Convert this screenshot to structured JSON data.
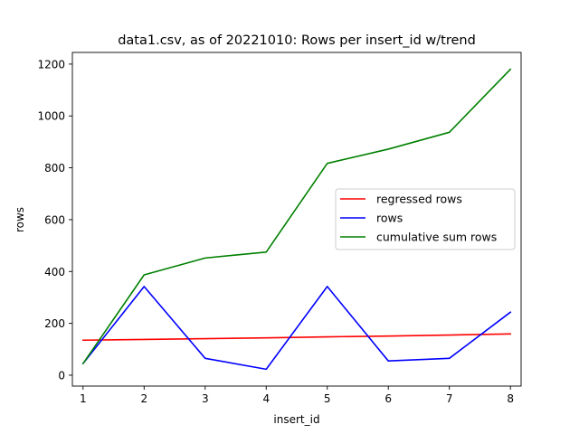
{
  "chart_data": {
    "type": "line",
    "title": "data1.csv, as of 20221010: Rows per insert_id w/trend",
    "xlabel": "insert_id",
    "ylabel": "rows",
    "x": [
      1,
      2,
      3,
      4,
      5,
      6,
      7,
      8
    ],
    "xlim": [
      0.825,
      8.175
    ],
    "ylim": [
      -42,
      1245
    ],
    "xticks": [
      1,
      2,
      3,
      4,
      5,
      6,
      7,
      8
    ],
    "yticks": [
      0,
      200,
      400,
      600,
      800,
      1000,
      1200
    ],
    "grid": false,
    "legend_position": "center-right",
    "series": [
      {
        "name": "regressed rows",
        "color": "#ff0000",
        "values": [
          135,
          138,
          141,
          144,
          148,
          151,
          155,
          159
        ]
      },
      {
        "name": "rows",
        "color": "#0000ff",
        "values": [
          45,
          342,
          65,
          23,
          342,
          55,
          65,
          243
        ]
      },
      {
        "name": "cumulative sum rows",
        "color": "#008000",
        "values": [
          45,
          387,
          452,
          475,
          817,
          872,
          937,
          1180
        ]
      }
    ]
  }
}
